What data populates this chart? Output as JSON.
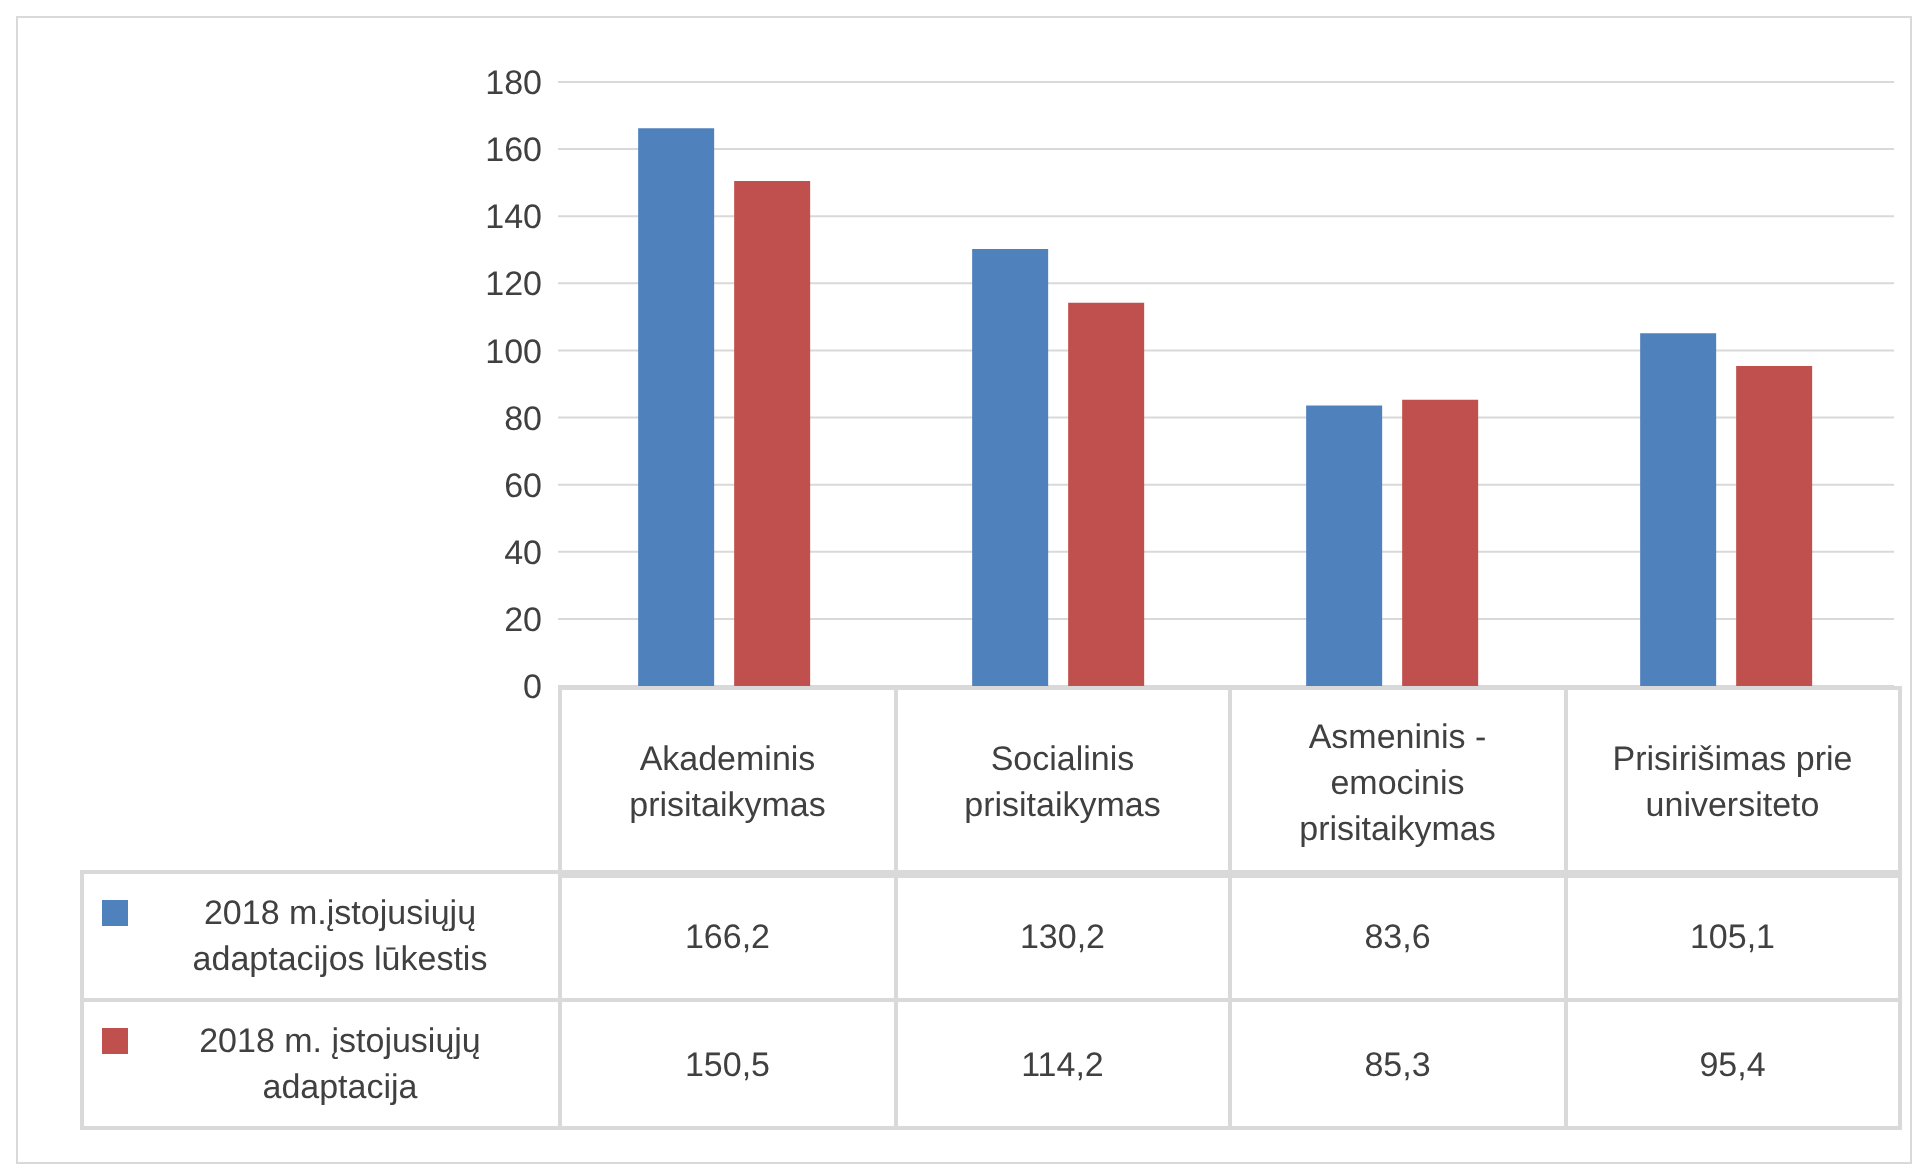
{
  "chart_data": {
    "type": "bar",
    "categories": [
      "Akademinis prisitaikymas",
      "Socialinis prisitaikymas",
      "Asmeninis - emocinis prisitaikymas",
      "Prisirišimas prie universiteto"
    ],
    "series": [
      {
        "name": "2018 m.įstojusiųjų adaptacijos lūkestis",
        "color": "#4f81bd",
        "values": [
          166.2,
          130.2,
          83.6,
          105.1
        ],
        "value_labels": [
          "166,2",
          "130,2",
          "83,6",
          "105,1"
        ]
      },
      {
        "name": "2018 m. įstojusiųjų adaptacija",
        "color": "#c0504d",
        "values": [
          150.5,
          114.2,
          85.3,
          95.4
        ],
        "value_labels": [
          "150,5",
          "114,2",
          "85,3",
          "95,4"
        ]
      }
    ],
    "ylim": [
      0,
      180
    ],
    "yticks": [
      0,
      20,
      40,
      60,
      80,
      100,
      120,
      140,
      160,
      180
    ],
    "grid": "y",
    "legend": "bottom"
  }
}
